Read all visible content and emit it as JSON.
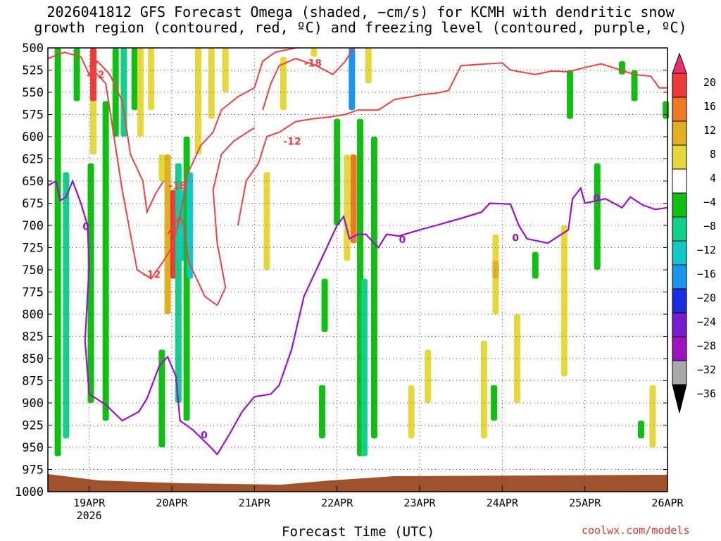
{
  "chart_data": {
    "type": "heatmap",
    "title_line1": "2026041812 GFS Forecast Omega (shaded, −cm/s) for KCMH with dendritic snow",
    "title_line2": "growth region (contoured, red, ºC) and freezing level (contoured, purple, ºC)",
    "xlabel": "Forecast Time (UTC)",
    "x_ticks": [
      "19APR",
      "20APR",
      "21APR",
      "22APR",
      "23APR",
      "24APR",
      "25APR",
      "26APR"
    ],
    "x_year_label": "2026",
    "x_range_days": [
      18.5,
      26.0
    ],
    "y_ticks": [
      500,
      525,
      550,
      575,
      600,
      625,
      650,
      675,
      700,
      725,
      750,
      775,
      800,
      825,
      850,
      875,
      900,
      925,
      950,
      975,
      1000
    ],
    "ylim": [
      500,
      1000
    ],
    "colorbar_labels": [
      "20",
      "16",
      "12",
      "8",
      "4",
      "−4",
      "−8",
      "−12",
      "−16",
      "−20",
      "−24",
      "−28",
      "−32",
      "−36"
    ],
    "colorbar_colors": [
      "#ee2e6e",
      "#f03a3a",
      "#f07820",
      "#e0b020",
      "#e6d83a",
      "#ffffff",
      "#10c010",
      "#10d08a",
      "#10c8c8",
      "#1a96f0",
      "#1a2ee0",
      "#7a1ad0",
      "#a010c0",
      "#a8a8a8",
      "#000000"
    ],
    "shading": [
      {
        "t": 18.62,
        "p0": 500,
        "p1": 960,
        "v": -8
      },
      {
        "t": 18.72,
        "p0": 640,
        "p1": 940,
        "v": -12
      },
      {
        "t": 18.85,
        "p0": 500,
        "p1": 560,
        "v": -8
      },
      {
        "t": 19.05,
        "p0": 500,
        "p1": 620,
        "v": 4
      },
      {
        "t": 19.02,
        "p0": 630,
        "p1": 900,
        "v": -8
      },
      {
        "t": 19.05,
        "p0": 500,
        "p1": 560,
        "v": 16
      },
      {
        "t": 19.2,
        "p0": 560,
        "p1": 920,
        "v": -8
      },
      {
        "t": 19.32,
        "p0": 500,
        "p1": 600,
        "v": -8
      },
      {
        "t": 19.42,
        "p0": 500,
        "p1": 600,
        "v": -12
      },
      {
        "t": 19.55,
        "p0": 500,
        "p1": 570,
        "v": -8
      },
      {
        "t": 19.62,
        "p0": 500,
        "p1": 600,
        "v": 4
      },
      {
        "t": 19.75,
        "p0": 500,
        "p1": 570,
        "v": 4
      },
      {
        "t": 19.88,
        "p0": 620,
        "p1": 650,
        "v": 4
      },
      {
        "t": 19.88,
        "p0": 840,
        "p1": 950,
        "v": -8
      },
      {
        "t": 19.95,
        "p0": 620,
        "p1": 800,
        "v": 8
      },
      {
        "t": 20.02,
        "p0": 660,
        "p1": 760,
        "v": 16
      },
      {
        "t": 20.08,
        "p0": 630,
        "p1": 900,
        "v": -12
      },
      {
        "t": 20.12,
        "p0": 660,
        "p1": 740,
        "v": -16
      },
      {
        "t": 20.18,
        "p0": 600,
        "p1": 920,
        "v": -8
      },
      {
        "t": 20.22,
        "p0": 640,
        "p1": 760,
        "v": -16
      },
      {
        "t": 20.32,
        "p0": 500,
        "p1": 620,
        "v": 4
      },
      {
        "t": 20.48,
        "p0": 500,
        "p1": 580,
        "v": 4
      },
      {
        "t": 20.65,
        "p0": 500,
        "p1": 550,
        "v": 4
      },
      {
        "t": 21.15,
        "p0": 640,
        "p1": 750,
        "v": 4
      },
      {
        "t": 21.35,
        "p0": 510,
        "p1": 570,
        "v": 4
      },
      {
        "t": 21.72,
        "p0": 500,
        "p1": 510,
        "v": 4
      },
      {
        "t": 21.85,
        "p0": 760,
        "p1": 820,
        "v": -8
      },
      {
        "t": 21.82,
        "p0": 880,
        "p1": 940,
        "v": -8
      },
      {
        "t": 22.0,
        "p0": 580,
        "p1": 700,
        "v": -8
      },
      {
        "t": 22.12,
        "p0": 620,
        "p1": 740,
        "v": 4
      },
      {
        "t": 22.18,
        "p0": 500,
        "p1": 570,
        "v": -20
      },
      {
        "t": 22.2,
        "p0": 620,
        "p1": 720,
        "v": 12
      },
      {
        "t": 22.28,
        "p0": 580,
        "p1": 960,
        "v": -8
      },
      {
        "t": 22.33,
        "p0": 760,
        "p1": 960,
        "v": -12
      },
      {
        "t": 22.45,
        "p0": 600,
        "p1": 940,
        "v": -8
      },
      {
        "t": 22.38,
        "p0": 500,
        "p1": 540,
        "v": 4
      },
      {
        "t": 22.9,
        "p0": 880,
        "p1": 940,
        "v": 4
      },
      {
        "t": 23.1,
        "p0": 840,
        "p1": 900,
        "v": 4
      },
      {
        "t": 23.78,
        "p0": 830,
        "p1": 940,
        "v": 4
      },
      {
        "t": 23.92,
        "p0": 710,
        "p1": 800,
        "v": 4
      },
      {
        "t": 23.92,
        "p0": 740,
        "p1": 760,
        "v": 8
      },
      {
        "t": 23.9,
        "p0": 880,
        "p1": 920,
        "v": -8
      },
      {
        "t": 24.18,
        "p0": 800,
        "p1": 900,
        "v": 4
      },
      {
        "t": 24.4,
        "p0": 730,
        "p1": 760,
        "v": -8
      },
      {
        "t": 24.75,
        "p0": 700,
        "p1": 870,
        "v": 4
      },
      {
        "t": 24.82,
        "p0": 525,
        "p1": 580,
        "v": -8
      },
      {
        "t": 25.15,
        "p0": 630,
        "p1": 750,
        "v": -8
      },
      {
        "t": 25.45,
        "p0": 515,
        "p1": 530,
        "v": -8
      },
      {
        "t": 25.6,
        "p0": 525,
        "p1": 560,
        "v": -8
      },
      {
        "t": 25.68,
        "p0": 920,
        "p1": 940,
        "v": -8
      },
      {
        "t": 25.82,
        "p0": 880,
        "p1": 950,
        "v": 4
      },
      {
        "t": 25.98,
        "p0": 560,
        "p1": 580,
        "v": -8
      }
    ],
    "dgz_contours": [
      {
        "label": "-12",
        "label_at": [
          18.97,
          530
        ],
        "points": [
          [
            18.5,
            512
          ],
          [
            18.7,
            505
          ],
          [
            18.9,
            510
          ],
          [
            19.0,
            530
          ],
          [
            19.1,
            515
          ],
          [
            19.25,
            530
          ],
          [
            19.4,
            560
          ],
          [
            19.5,
            620
          ],
          [
            19.65,
            650
          ],
          [
            19.7,
            685
          ],
          [
            19.8,
            665
          ],
          [
            19.9,
            650
          ]
        ]
      },
      {
        "label": "-12",
        "label_at": [
          19.65,
          755
        ],
        "points": [
          [
            19.0,
            520
          ],
          [
            19.2,
            540
          ],
          [
            19.3,
            600
          ],
          [
            19.4,
            660
          ],
          [
            19.5,
            710
          ],
          [
            19.58,
            750
          ],
          [
            19.75,
            760
          ],
          [
            19.9,
            740
          ],
          [
            20.0,
            725
          ],
          [
            20.1,
            690
          ],
          [
            20.2,
            640
          ],
          [
            20.35,
            610
          ],
          [
            20.5,
            595
          ],
          [
            20.6,
            570
          ],
          [
            20.8,
            555
          ],
          [
            21.0,
            545
          ],
          [
            21.1,
            515
          ],
          [
            21.25,
            505
          ],
          [
            21.5,
            500
          ]
        ]
      },
      {
        "label": "-18",
        "label_at": [
          19.96,
          655
        ],
        "points": [
          [
            19.95,
            710
          ],
          [
            20.1,
            690
          ],
          [
            20.15,
            700
          ],
          [
            20.2,
            740
          ],
          [
            20.3,
            760
          ],
          [
            20.4,
            780
          ],
          [
            20.55,
            790
          ],
          [
            20.65,
            770
          ],
          [
            20.55,
            720
          ],
          [
            20.5,
            660
          ],
          [
            20.6,
            620
          ],
          [
            20.75,
            605
          ],
          [
            21.0,
            590
          ]
        ]
      },
      {
        "label": "-18",
        "label_at": [
          21.6,
          517
        ],
        "points": [
          [
            21.1,
            570
          ],
          [
            21.2,
            540
          ],
          [
            21.3,
            520
          ],
          [
            21.5,
            512
          ],
          [
            21.75,
            520
          ],
          [
            21.95,
            530
          ],
          [
            22.1,
            515
          ],
          [
            22.2,
            500
          ]
        ]
      },
      {
        "label": "-12",
        "label_at": [
          21.35,
          605
        ],
        "points": [
          [
            20.8,
            700
          ],
          [
            20.9,
            650
          ],
          [
            21.05,
            630
          ],
          [
            21.15,
            600
          ],
          [
            21.3,
            595
          ],
          [
            21.5,
            583
          ],
          [
            21.7,
            580
          ],
          [
            21.9,
            578
          ],
          [
            22.1,
            575
          ],
          [
            22.25,
            570
          ],
          [
            22.5,
            570
          ],
          [
            22.7,
            558
          ],
          [
            22.9,
            555
          ],
          [
            23.0,
            553
          ],
          [
            23.2,
            551
          ],
          [
            23.35,
            548
          ],
          [
            23.5,
            520
          ],
          [
            23.8,
            518
          ],
          [
            24.0,
            517
          ],
          [
            24.1,
            525
          ],
          [
            24.4,
            530
          ],
          [
            24.6,
            526
          ],
          [
            24.8,
            527
          ],
          [
            25.0,
            522
          ],
          [
            25.2,
            518
          ],
          [
            25.4,
            524
          ],
          [
            25.6,
            530
          ],
          [
            25.8,
            532
          ],
          [
            25.9,
            545
          ],
          [
            26.0,
            545
          ]
        ]
      }
    ],
    "freezing_contour": {
      "label": "0",
      "points": [
        [
          18.5,
          655
        ],
        [
          18.6,
          650
        ],
        [
          18.65,
          672
        ],
        [
          18.72,
          668
        ],
        [
          18.8,
          650
        ],
        [
          18.9,
          675
        ],
        [
          18.98,
          700
        ],
        [
          19.0,
          745
        ],
        [
          18.95,
          830
        ],
        [
          19.0,
          890
        ],
        [
          19.2,
          902
        ],
        [
          19.4,
          920
        ],
        [
          19.6,
          910
        ],
        [
          19.7,
          895
        ],
        [
          19.85,
          858
        ],
        [
          19.95,
          848
        ],
        [
          20.05,
          870
        ],
        [
          20.1,
          920
        ],
        [
          20.25,
          930
        ],
        [
          20.45,
          948
        ],
        [
          20.55,
          958
        ],
        [
          20.7,
          935
        ],
        [
          20.85,
          910
        ],
        [
          21.0,
          893
        ],
        [
          21.2,
          890
        ],
        [
          21.3,
          880
        ],
        [
          21.45,
          840
        ],
        [
          21.6,
          780
        ],
        [
          21.8,
          740
        ],
        [
          22.0,
          700
        ],
        [
          22.08,
          690
        ],
        [
          22.15,
          715
        ],
        [
          22.25,
          710
        ],
        [
          22.35,
          710
        ],
        [
          22.5,
          725
        ],
        [
          22.6,
          710
        ],
        [
          22.75,
          712
        ],
        [
          23.0,
          705
        ],
        [
          23.2,
          700
        ],
        [
          23.5,
          692
        ],
        [
          23.75,
          685
        ],
        [
          23.85,
          675
        ],
        [
          24.1,
          676
        ],
        [
          24.2,
          700
        ],
        [
          24.3,
          715
        ],
        [
          24.55,
          720
        ],
        [
          24.8,
          705
        ],
        [
          24.85,
          670
        ],
        [
          24.95,
          658
        ],
        [
          25.0,
          675
        ],
        [
          25.25,
          670
        ],
        [
          25.45,
          680
        ],
        [
          25.55,
          668
        ],
        [
          25.7,
          677
        ],
        [
          25.85,
          682
        ],
        [
          26.0,
          680
        ]
      ]
    }
  },
  "credit": "coolwx.com/models"
}
